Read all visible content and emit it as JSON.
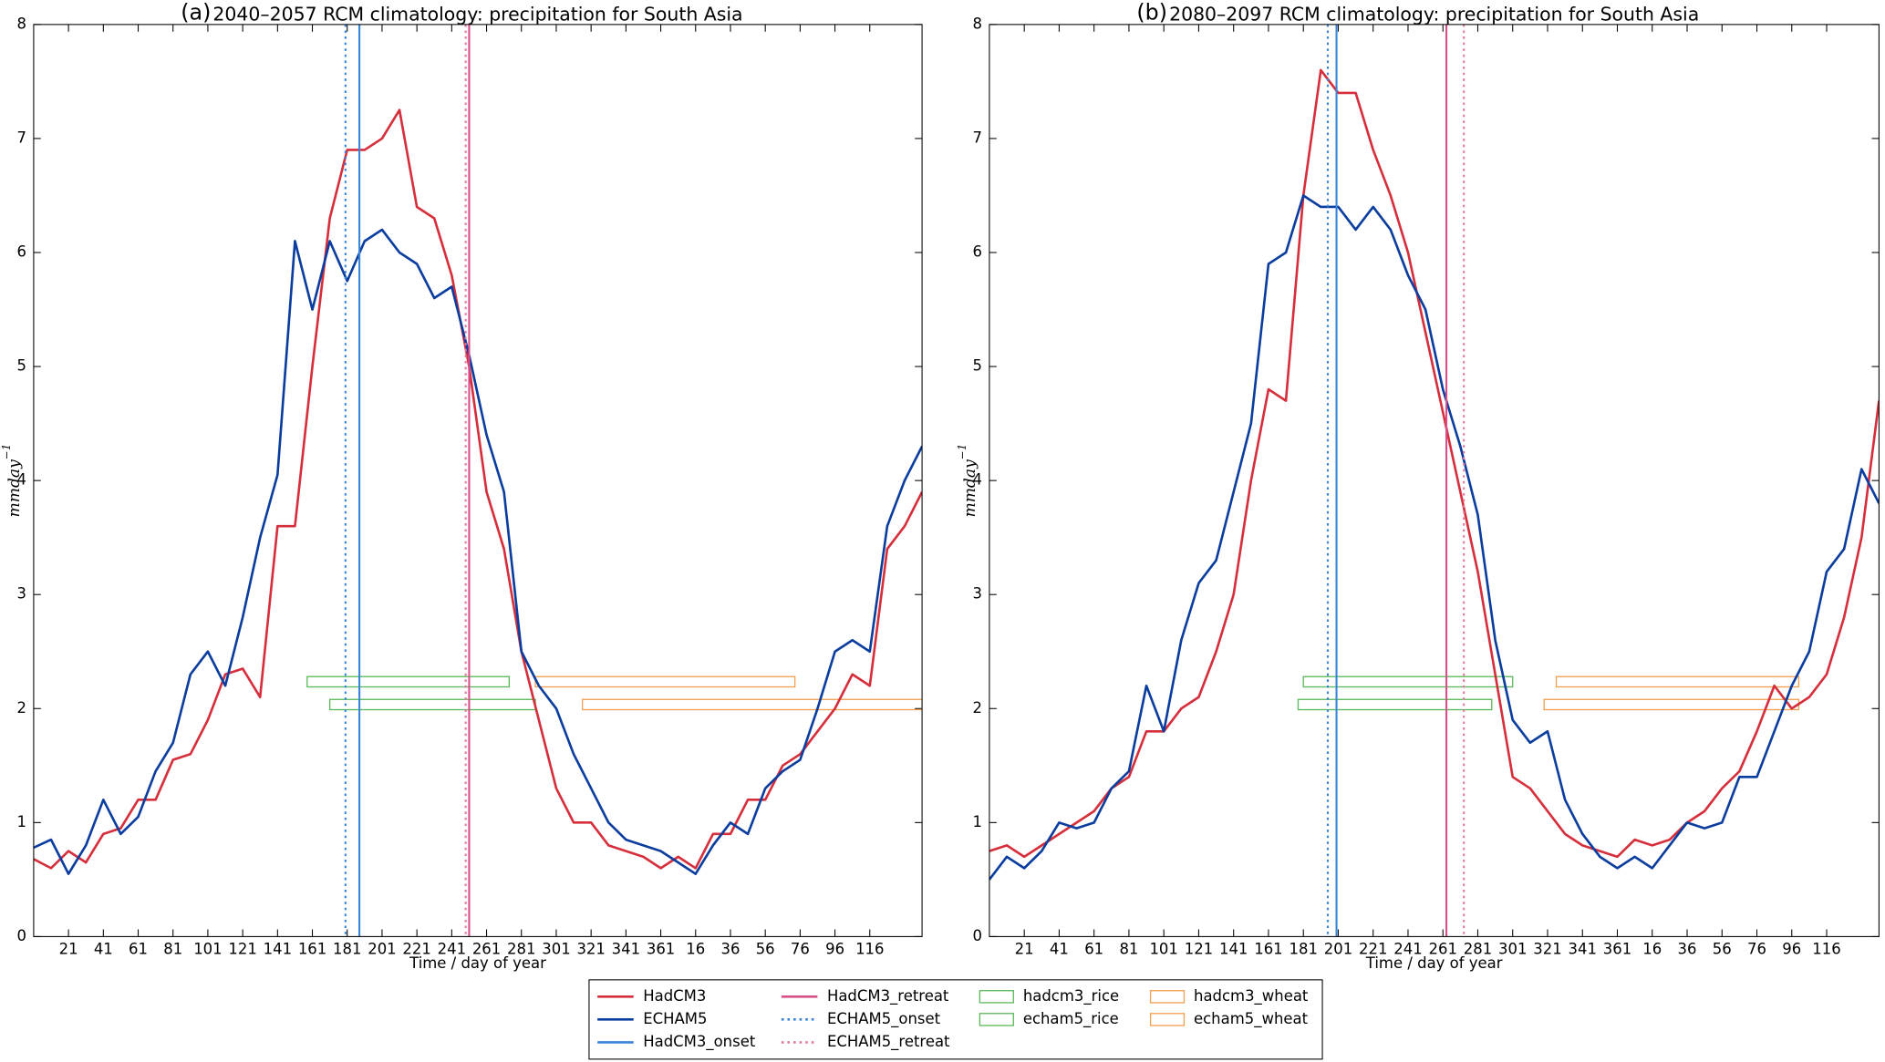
{
  "chart_data": [
    {
      "type": "line",
      "panel_label": "(a)",
      "title": "2040–2057 RCM climatology: precipitation for South Asia",
      "x_label": "Time / day of year",
      "y_label": "mmday",
      "y_label_exponent": "−1",
      "xlim": [
        1,
        511
      ],
      "ylim": [
        0,
        8
      ],
      "xticks": [
        21,
        41,
        61,
        81,
        101,
        121,
        141,
        161,
        181,
        201,
        221,
        241,
        261,
        281,
        301,
        321,
        341,
        361,
        {
          "value": 381,
          "label": "16"
        },
        {
          "value": 401,
          "label": "36"
        },
        {
          "value": 421,
          "label": "56"
        },
        {
          "value": 441,
          "label": "76"
        },
        {
          "value": 461,
          "label": "96"
        },
        {
          "value": 481,
          "label": "116"
        }
      ],
      "yticks": [
        0,
        1,
        2,
        3,
        4,
        5,
        6,
        7,
        8
      ],
      "x": [
        1,
        11,
        21,
        31,
        41,
        51,
        61,
        71,
        81,
        91,
        101,
        111,
        121,
        131,
        141,
        151,
        161,
        171,
        181,
        191,
        201,
        211,
        221,
        231,
        241,
        251,
        261,
        271,
        281,
        291,
        301,
        311,
        321,
        331,
        341,
        351,
        361,
        371,
        381,
        391,
        401,
        411,
        421,
        431,
        441,
        451,
        461,
        471,
        481,
        491,
        501,
        511
      ],
      "series": [
        {
          "name": "HadCM3",
          "color": "#d62f3c",
          "values": [
            0.68,
            0.6,
            0.75,
            0.65,
            0.9,
            0.95,
            1.2,
            1.2,
            1.55,
            1.6,
            1.9,
            2.3,
            2.35,
            2.1,
            3.6,
            3.6,
            5.0,
            6.3,
            6.9,
            6.9,
            7.0,
            7.25,
            6.4,
            6.3,
            5.8,
            5.0,
            3.9,
            3.4,
            2.5,
            1.9,
            1.3,
            1.0,
            1.0,
            0.8,
            0.75,
            0.7,
            0.6,
            0.7,
            0.6,
            0.9,
            0.9,
            1.2,
            1.2,
            1.5,
            1.6,
            1.8,
            2.0,
            2.3,
            2.2,
            3.4,
            3.6,
            3.9
          ]
        },
        {
          "name": "ECHAM5",
          "color": "#0b3d9e",
          "values": [
            0.78,
            0.85,
            0.55,
            0.8,
            1.2,
            0.9,
            1.05,
            1.45,
            1.7,
            2.3,
            2.5,
            2.2,
            2.8,
            3.5,
            4.05,
            6.1,
            5.5,
            6.1,
            5.75,
            6.1,
            6.2,
            6.0,
            5.9,
            5.6,
            5.7,
            5.1,
            4.4,
            3.9,
            2.5,
            2.2,
            2.0,
            1.6,
            1.3,
            1.0,
            0.85,
            0.8,
            0.75,
            0.65,
            0.55,
            0.8,
            1.0,
            0.9,
            1.3,
            1.45,
            1.55,
            2.0,
            2.5,
            2.6,
            2.5,
            3.6,
            4.0,
            4.3
          ]
        }
      ],
      "markers": [
        {
          "name": "HadCM3_onset",
          "color": "#3a85d8",
          "style": "solid",
          "x": 188
        },
        {
          "name": "HadCM3_retreat",
          "color": "#d94f8a",
          "style": "solid",
          "x": 251
        },
        {
          "name": "ECHAM5_onset",
          "color": "#3a85d8",
          "style": "dotted",
          "x": 180
        },
        {
          "name": "ECHAM5_retreat",
          "color": "#e07aa0",
          "style": "dotted",
          "x": 249
        }
      ],
      "periods": [
        {
          "name": "hadcm3_rice",
          "color": "#5cb85c",
          "x": [
            158,
            274
          ],
          "y": [
            2.19,
            2.28
          ]
        },
        {
          "name": "echam5_rice",
          "color": "#5cb85c",
          "x": [
            171,
            289
          ],
          "y": [
            1.99,
            2.08
          ]
        },
        {
          "name": "hadcm3_wheat",
          "color": "#f0a050",
          "x": [
            289,
            438
          ],
          "y": [
            2.19,
            2.28
          ]
        },
        {
          "name": "echam5_wheat",
          "color": "#f0a050",
          "x": [
            316,
            511
          ],
          "y": [
            1.99,
            2.08
          ]
        }
      ]
    },
    {
      "type": "line",
      "panel_label": "(b)",
      "title": "2080–2097 RCM climatology: precipitation for South Asia",
      "x_label": "Time / day of year",
      "y_label": "mmday",
      "y_label_exponent": "−1",
      "xlim": [
        1,
        511
      ],
      "ylim": [
        0,
        8
      ],
      "xticks": [
        21,
        41,
        61,
        81,
        101,
        121,
        141,
        161,
        181,
        201,
        221,
        241,
        261,
        281,
        301,
        321,
        341,
        361,
        {
          "value": 381,
          "label": "16"
        },
        {
          "value": 401,
          "label": "36"
        },
        {
          "value": 421,
          "label": "56"
        },
        {
          "value": 441,
          "label": "76"
        },
        {
          "value": 461,
          "label": "96"
        },
        {
          "value": 481,
          "label": "116"
        }
      ],
      "yticks": [
        0,
        1,
        2,
        3,
        4,
        5,
        6,
        7,
        8
      ],
      "x": [
        1,
        11,
        21,
        31,
        41,
        51,
        61,
        71,
        81,
        91,
        101,
        111,
        121,
        131,
        141,
        151,
        161,
        171,
        181,
        191,
        201,
        211,
        221,
        231,
        241,
        251,
        261,
        271,
        281,
        291,
        301,
        311,
        321,
        331,
        341,
        351,
        361,
        371,
        381,
        391,
        401,
        411,
        421,
        431,
        441,
        451,
        461,
        471,
        481,
        491,
        501,
        511
      ],
      "series": [
        {
          "color": "#d62f3c",
          "values": [
            0.75,
            0.8,
            0.7,
            0.8,
            0.9,
            1.0,
            1.1,
            1.3,
            1.4,
            1.8,
            1.8,
            2.0,
            2.1,
            2.5,
            3.0,
            4.0,
            4.8,
            4.7,
            6.5,
            7.6,
            7.4,
            7.4,
            6.9,
            6.5,
            6.0,
            5.3,
            4.6,
            3.9,
            3.2,
            2.3,
            1.4,
            1.3,
            1.1,
            0.9,
            0.8,
            0.75,
            0.7,
            0.85,
            0.8,
            0.85,
            1.0,
            1.1,
            1.3,
            1.45,
            1.8,
            2.2,
            2.0,
            2.1,
            2.3,
            2.8,
            3.5,
            4.7
          ]
        },
        {
          "color": "#0b3d9e",
          "values": [
            0.5,
            0.7,
            0.6,
            0.75,
            1.0,
            0.95,
            1.0,
            1.3,
            1.45,
            2.2,
            1.8,
            2.6,
            3.1,
            3.3,
            3.9,
            4.5,
            5.9,
            6.0,
            6.5,
            6.4,
            6.4,
            6.2,
            6.4,
            6.2,
            5.8,
            5.5,
            4.8,
            4.3,
            3.7,
            2.6,
            1.9,
            1.7,
            1.8,
            1.2,
            0.9,
            0.7,
            0.6,
            0.7,
            0.6,
            0.8,
            1.0,
            0.95,
            1.0,
            1.4,
            1.4,
            1.8,
            2.2,
            2.5,
            3.2,
            3.4,
            4.1,
            3.8
          ]
        }
      ],
      "markers": [
        {
          "color": "#3a85d8",
          "style": "solid",
          "x": 200
        },
        {
          "color": "#d94f8a",
          "style": "solid",
          "x": 263
        },
        {
          "color": "#3a85d8",
          "style": "dotted",
          "x": 195
        },
        {
          "color": "#e07aa0",
          "style": "dotted",
          "x": 273
        }
      ],
      "periods": [
        {
          "color": "#5cb85c",
          "x": [
            181,
            301
          ],
          "y": [
            2.19,
            2.28
          ]
        },
        {
          "color": "#5cb85c",
          "x": [
            178,
            289
          ],
          "y": [
            1.99,
            2.08
          ]
        },
        {
          "color": "#f0a050",
          "x": [
            326,
            465
          ],
          "y": [
            2.19,
            2.28
          ]
        },
        {
          "color": "#f0a050",
          "x": [
            319,
            465
          ],
          "y": [
            1.99,
            2.08
          ]
        }
      ]
    }
  ]
}
